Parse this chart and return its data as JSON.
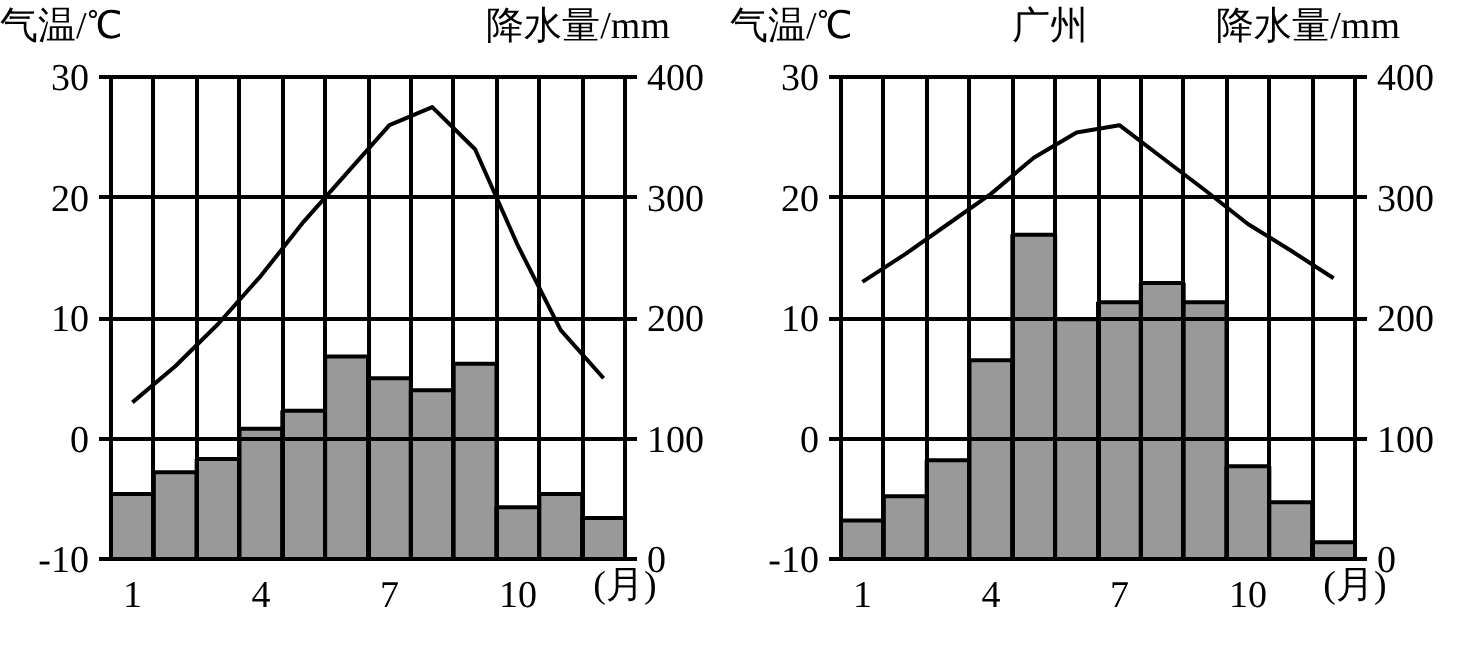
{
  "chart_data": [
    {
      "type": "bar",
      "ylabel": "气温/℃",
      "y2label": "降水量/mm",
      "xlabel": "(月)",
      "categories": [
        "1",
        null,
        null,
        "4",
        null,
        null,
        "7",
        null,
        null,
        "10",
        null,
        null
      ],
      "series": [
        {
          "axis": "y2",
          "color": "#999999",
          "values": [
            54,
            72,
            83,
            108,
            123,
            168,
            150,
            140,
            162,
            43,
            54,
            34
          ]
        },
        {
          "type": "line",
          "axis": "y",
          "color": "#000000",
          "values": [
            3,
            6,
            9.5,
            13.5,
            18,
            22,
            26,
            27.5,
            24,
            16,
            9,
            5
          ]
        }
      ],
      "ylim": [
        -10,
        30
      ],
      "yticks": [
        -10,
        0,
        10,
        20,
        30
      ],
      "y2lim": [
        0,
        400
      ],
      "y2ticks": [
        0,
        100,
        200,
        300,
        400
      ],
      "grid": true
    },
    {
      "type": "bar",
      "title": "广州",
      "ylabel": "气温/℃",
      "y2label": "降水量/mm",
      "xlabel": "(月)",
      "categories": [
        "1",
        null,
        null,
        "4",
        null,
        null,
        "7",
        null,
        null,
        "10",
        null,
        null
      ],
      "series": [
        {
          "axis": "y2",
          "color": "#999999",
          "values": [
            32,
            52,
            82,
            165,
            269,
            199,
            213,
            229,
            213,
            77,
            47,
            14
          ]
        },
        {
          "type": "line",
          "axis": "y",
          "color": "#000000",
          "values": [
            13,
            15.3,
            17.8,
            20.3,
            23.3,
            25.4,
            26,
            23.3,
            20.6,
            17.8,
            15.6,
            13.3
          ]
        }
      ],
      "ylim": [
        -10,
        30
      ],
      "yticks": [
        -10,
        0,
        10,
        20,
        30
      ],
      "y2lim": [
        0,
        400
      ],
      "y2ticks": [
        0,
        100,
        200,
        300,
        400
      ],
      "grid": true
    }
  ]
}
